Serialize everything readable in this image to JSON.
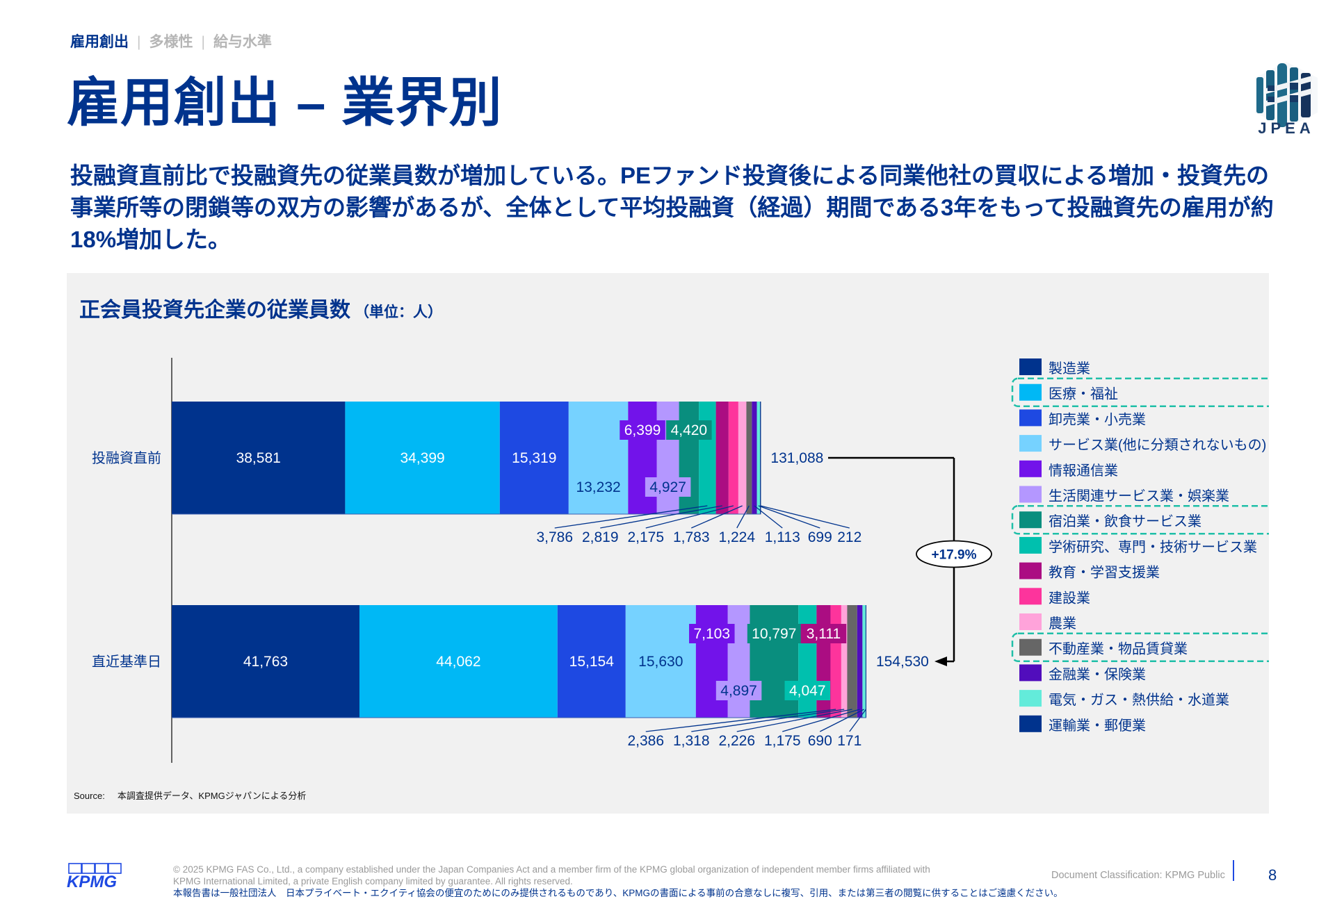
{
  "breadcrumb": {
    "items": [
      "雇用創出",
      "多様性",
      "給与水準"
    ],
    "separator": "|"
  },
  "header": {
    "title": "雇用創出 – 業界別",
    "logo_text": "JPEA"
  },
  "lead": "投融資直前比で投融資先の従業員数が増加している。PEファンド投資後による同業他社の買収による増加・投資先の事業所等の閉鎖等の双方の影響があるが、全体として平均投融資（経過）期間である3年をもって投融資先の雇用が約18%増加した。",
  "chart_data": {
    "type": "bar",
    "orientation": "horizontal",
    "stacked": true,
    "title": "正会員投資先企業の従業員数",
    "unit_label": "（単位：人）",
    "categories": [
      "投融資直前",
      "直近基準日"
    ],
    "totals": [
      131088,
      154530
    ],
    "total_labels": [
      "131,088",
      "154,530"
    ],
    "growth_label": "+17.9%",
    "legend_position": "right",
    "highlighted_legend": [
      "医療・福祉",
      "宿泊業・飲食サービス業",
      "不動産業・物品賃貸業"
    ],
    "highlight_color": "#1FBFA8",
    "series": [
      {
        "name": "製造業",
        "color": "#00338D",
        "values": [
          38581,
          41763
        ],
        "labels": [
          "38,581",
          "41,763"
        ]
      },
      {
        "name": "医療・福祉",
        "color": "#00B8F5",
        "values": [
          34399,
          44062
        ],
        "labels": [
          "34,399",
          "44,062"
        ]
      },
      {
        "name": "卸売業・小売業",
        "color": "#1E49E2",
        "values": [
          15319,
          15154
        ],
        "labels": [
          "15,319",
          "15,154"
        ]
      },
      {
        "name": "サービス業(他に分類されないもの)",
        "color": "#76D2FF",
        "values": [
          13232,
          15630
        ],
        "labels": [
          "13,232",
          "15,630"
        ]
      },
      {
        "name": "情報通信業",
        "color": "#7213EA",
        "values": [
          6399,
          7103
        ],
        "labels": [
          "6,399",
          "7,103"
        ]
      },
      {
        "name": "生活関連サービス業・娯楽業",
        "color": "#B497FF",
        "values": [
          4927,
          4897
        ],
        "labels": [
          "4,927",
          "4,897"
        ]
      },
      {
        "name": "宿泊業・飲食サービス業",
        "color": "#098E7E",
        "values": [
          4420,
          10797
        ],
        "labels": [
          "4,420",
          "10,797"
        ]
      },
      {
        "name": "学術研究、専門・技術サービス業",
        "color": "#00C0AE",
        "values": [
          3786,
          4047
        ],
        "labels": [
          "3,786",
          "4,047"
        ]
      },
      {
        "name": "教育・学習支援業",
        "color": "#AB0D82",
        "values": [
          2819,
          3111
        ],
        "labels": [
          "2,819",
          "3,111"
        ]
      },
      {
        "name": "建設業",
        "color": "#FD349C",
        "values": [
          2175,
          2386
        ],
        "labels": [
          "2,175",
          "2,386"
        ]
      },
      {
        "name": "農業",
        "color": "#FFA3DA",
        "values": [
          1783,
          1318
        ],
        "labels": [
          "1,783",
          "1,318"
        ]
      },
      {
        "name": "不動産業・物品賃貸業",
        "color": "#666666",
        "values": [
          1224,
          2226
        ],
        "labels": [
          "1,224",
          "2,226"
        ]
      },
      {
        "name": "金融業・保険業",
        "color": "#510DBC",
        "values": [
          1113,
          1175
        ],
        "labels": [
          "1,113",
          "1,175"
        ]
      },
      {
        "name": "電気・ガス・熱供給・水道業",
        "color": "#63EBDA",
        "values": [
          699,
          690
        ],
        "labels": [
          "699",
          "690"
        ]
      },
      {
        "name": "運輸業・郵便業",
        "color": "#00338D",
        "values": [
          212,
          171
        ],
        "labels": [
          "212",
          "171"
        ]
      }
    ]
  },
  "source": {
    "label": "Source:",
    "text": "本調査提供データ、KPMGジャパンによる分析"
  },
  "footer": {
    "logo_text": "KPMG",
    "copyright_line1": "© 2025 KPMG FAS Co., Ltd., a company established under the Japan Companies Act and a member firm of the KPMG global organization of independent member firms affiliated with",
    "copyright_line2": "KPMG International Limited, a private English company limited by guarantee. All rights reserved.",
    "notice_jp": "本報告書は一般社団法人　日本プライベート・エクイティ協会の便宜のためにのみ提供されるものであり、KPMGの書面による事前の合意なしに複写、引用、または第三者の閲覧に供することはご遠慮ください。",
    "classification": "Document Classification: KPMG Public",
    "page_number": "8"
  }
}
